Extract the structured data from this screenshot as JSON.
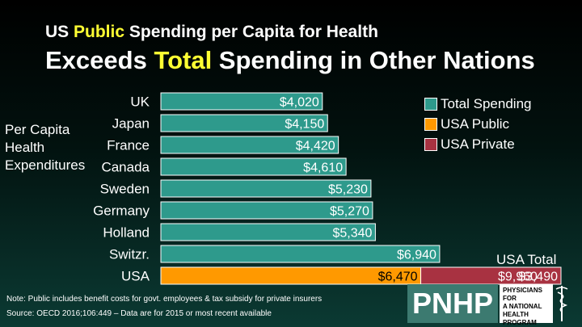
{
  "title": {
    "line1_prefix": "US ",
    "line1_highlight": "Public",
    "line1_suffix": " Spending per Capita for Health",
    "line2_prefix": "Exceeds ",
    "line2_highlight": "Total",
    "line2_suffix": " Spending in Other Nations"
  },
  "y_side_label": [
    "Per Capita",
    "Health",
    "Expenditures"
  ],
  "legend": [
    {
      "label": "Total Spending",
      "color": "#2e9a8c"
    },
    {
      "label": "USA Public",
      "color": "#ff9900"
    },
    {
      "label": "USA Private",
      "color": "#a83241"
    }
  ],
  "usa_total_label": "USA Total",
  "note": "Note: Public includes benefit costs for govt. employees & tax subsidy for private insurers",
  "source": "Source: OECD 2016;106:449 – Data are for 2015 or most recent available",
  "logo": {
    "letters": "PNHP",
    "text_lines": [
      "PHYSICIANS FOR",
      "A NATIONAL",
      "HEALTH",
      "PROGRAM"
    ]
  },
  "chart_data": {
    "type": "bar",
    "orientation": "horizontal",
    "stacked": true,
    "categories": [
      "UK",
      "Japan",
      "France",
      "Canada",
      "Sweden",
      "Germany",
      "Holland",
      "Switzr.",
      "USA"
    ],
    "series": [
      {
        "name": "Total Spending",
        "color": "#2e9a8c",
        "values": [
          4020,
          4150,
          4420,
          4610,
          5230,
          5270,
          5340,
          6940,
          null
        ],
        "labels": [
          "$4,020",
          "$4,150",
          "$4,420",
          "$4,610",
          "$5,230",
          "$5,270",
          "$5,340",
          "$6,940",
          ""
        ]
      },
      {
        "name": "USA Public",
        "color": "#ff9900",
        "values": [
          null,
          null,
          null,
          null,
          null,
          null,
          null,
          null,
          6470
        ],
        "labels": [
          "",
          "",
          "",
          "",
          "",
          "",
          "",
          "",
          "$6,470"
        ]
      },
      {
        "name": "USA Private",
        "color": "#a83241",
        "values": [
          null,
          null,
          null,
          null,
          null,
          null,
          null,
          null,
          3490
        ],
        "labels": [
          "",
          "",
          "",
          "",
          "",
          "",
          "",
          "",
          "$3,490"
        ]
      }
    ],
    "usa_total_value": 9960,
    "usa_total_value_label": "$9,960",
    "xlim": [
      0,
      9960
    ]
  }
}
